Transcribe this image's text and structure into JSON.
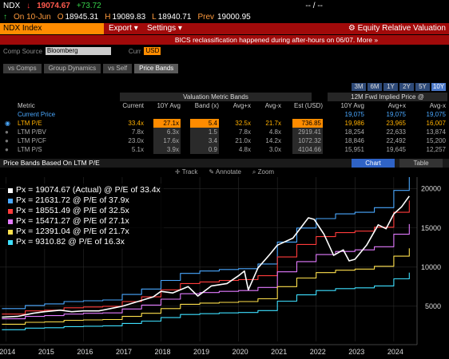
{
  "header": {
    "ticker": "NDX",
    "down_arrow": "↓",
    "last": "19074.67",
    "change": "+73.72",
    "up_arrow": "↑",
    "date_label": "On 10-Jun",
    "open_label": "O",
    "open": "18945.31",
    "high_label": "H",
    "high": "19089.83",
    "low_label": "L",
    "low": "18940.71",
    "prev_label": "Prev",
    "prev": "19000.95",
    "dash": "-- / --"
  },
  "command_bar": {
    "security": "NDX Index",
    "export_label": "Export",
    "settings_label": "Settings",
    "erv_label": "Equity Relative Valuation"
  },
  "notice": "BICS reclassification happened during after-hours on 06/07. More »",
  "comp_source": {
    "label": "Comp Source",
    "value": "Bloomberg",
    "curr_label": "Curr",
    "curr_value": "USD"
  },
  "tabs": [
    "vs Comps",
    "Group Dynamics",
    "vs Self",
    "Price Bands"
  ],
  "active_tab": 3,
  "periods": [
    "3M",
    "6M",
    "1Y",
    "2Y",
    "5Y",
    "10Y"
  ],
  "active_period": 5,
  "table": {
    "group1": "Valuation Metric Bands",
    "group2": "12M Fwd Implied Price @",
    "headers": [
      "Metric",
      "Current",
      "10Y Avg",
      "Band (x)",
      "Avg+x",
      "Avg-x",
      "Est (USD)",
      "10Y Avg",
      "Avg+x",
      "Avg-x"
    ],
    "current_price": {
      "label": "Current Price",
      "values": [
        "19,075",
        "19,075",
        "19,075"
      ]
    },
    "rows": [
      {
        "metric": "LTM P/E",
        "current": "33.4x",
        "avg": "27.1x",
        "band": "5.4",
        "avgplus": "32.5x",
        "avgminus": "21.7x",
        "est": "736.85",
        "p_avg": "19,986",
        "p_plus": "23,965",
        "p_minus": "16,007"
      },
      {
        "metric": "LTM P/BV",
        "current": "7.8x",
        "avg": "6.3x",
        "band": "1.5",
        "avgplus": "7.8x",
        "avgminus": "4.8x",
        "est": "2919.41",
        "p_avg": "18,254",
        "p_plus": "22,633",
        "p_minus": "13,874"
      },
      {
        "metric": "LTM P/CF",
        "current": "23.0x",
        "avg": "17.6x",
        "band": "3.4",
        "avgplus": "21.0x",
        "avgminus": "14.2x",
        "est": "1072.32",
        "p_avg": "18,846",
        "p_plus": "22,492",
        "p_minus": "15,200"
      },
      {
        "metric": "LTM P/S",
        "current": "5.1x",
        "avg": "3.9x",
        "band": "0.9",
        "avgplus": "4.8x",
        "avgminus": "3.0x",
        "est": "4104.66",
        "p_avg": "15,951",
        "p_plus": "19,645",
        "p_minus": "12,257"
      }
    ]
  },
  "chart_header": {
    "title": "Price Bands Based On LTM P/E",
    "chart_tab": "Chart",
    "table_tab": "Table"
  },
  "toolbar": {
    "track": "Track",
    "annotate": "Annotate",
    "zoom": "Zoom"
  },
  "colors": {
    "orange": "#ff8c00",
    "red_bar": "#a10a0a"
  },
  "chart_data": {
    "type": "line",
    "x_ticks": [
      "2014",
      "2015",
      "2016",
      "2017",
      "2018",
      "2019",
      "2020",
      "2021",
      "2022",
      "2023",
      "2024"
    ],
    "y_ticks": [
      5000,
      10000,
      15000,
      20000
    ],
    "ylim": [
      500,
      21500
    ],
    "xlim": [
      2013.85,
      2024.6
    ],
    "legend_placement": "top-left",
    "legend": [
      {
        "text": "Px = 19074.67 (Actual) @ P/E of 33.4x",
        "color": "#ffffff"
      },
      {
        "text": "Px = 21631.72 @ P/E of 37.9x",
        "color": "#4aa8ff"
      },
      {
        "text": "Px = 18551.49 @ P/E of 32.5x",
        "color": "#ff3b3b"
      },
      {
        "text": "Px = 15471.27 @ P/E of 27.1x",
        "color": "#e37bff"
      },
      {
        "text": "Px = 12391.04 @ P/E of 21.7x",
        "color": "#ffe14d"
      },
      {
        "text": "Px = 9310.82 @ P/E of 16.3x",
        "color": "#3ee0ff"
      }
    ],
    "series": [
      {
        "name": "Actual",
        "color": "#ffffff",
        "width": 1.6,
        "step": false,
        "x": [
          2013.9,
          2014.3,
          2014.7,
          2015.0,
          2015.4,
          2015.7,
          2016.0,
          2016.4,
          2016.8,
          2017.0,
          2017.4,
          2017.8,
          2018.0,
          2018.3,
          2018.7,
          2018.95,
          2019.3,
          2019.7,
          2020.0,
          2020.15,
          2020.25,
          2020.5,
          2020.8,
          2021.0,
          2021.4,
          2021.8,
          2021.95,
          2022.2,
          2022.45,
          2022.7,
          2022.85,
          2023.0,
          2023.3,
          2023.6,
          2023.8,
          2024.0,
          2024.2,
          2024.4
        ],
        "y": [
          3600,
          3700,
          4100,
          4300,
          4500,
          4300,
          4400,
          4400,
          4800,
          5000,
          5600,
          6200,
          6900,
          6700,
          7500,
          6300,
          7600,
          7900,
          8900,
          9500,
          7100,
          9900,
          11600,
          12800,
          13700,
          16300,
          16100,
          14200,
          11500,
          12200,
          10800,
          11000,
          12800,
          15400,
          14900,
          16800,
          17700,
          19075
        ]
      },
      {
        "name": "37.9x",
        "color": "#4aa8ff",
        "width": 1.1,
        "step": true,
        "x": [
          2013.9,
          2014.5,
          2015.0,
          2015.5,
          2016.0,
          2016.5,
          2017.0,
          2017.5,
          2018.0,
          2018.5,
          2019.0,
          2019.5,
          2020.0,
          2020.5,
          2021.0,
          2021.5,
          2022.0,
          2022.5,
          2023.0,
          2023.5,
          2024.0,
          2024.4
        ],
        "y": [
          4700,
          5100,
          5300,
          5600,
          5700,
          5800,
          6500,
          7200,
          8300,
          9200,
          9500,
          9700,
          9800,
          10400,
          13200,
          15000,
          16200,
          16800,
          17000,
          17600,
          19800,
          21500
        ]
      },
      {
        "name": "32.5x",
        "color": "#ff3b3b",
        "width": 1.1,
        "step": true,
        "x": [
          2013.9,
          2014.5,
          2015.0,
          2015.5,
          2016.0,
          2016.5,
          2017.0,
          2017.5,
          2018.0,
          2018.5,
          2019.0,
          2019.5,
          2020.0,
          2020.5,
          2021.0,
          2021.5,
          2022.0,
          2022.5,
          2023.0,
          2023.5,
          2024.0,
          2024.4
        ],
        "y": [
          4000,
          4400,
          4500,
          4800,
          4900,
          5000,
          5600,
          6200,
          7100,
          7900,
          8100,
          8300,
          8400,
          8900,
          11300,
          12900,
          13900,
          14400,
          14600,
          15100,
          17000,
          18500
        ]
      },
      {
        "name": "27.1x",
        "color": "#e37bff",
        "width": 1.1,
        "step": true,
        "x": [
          2013.9,
          2014.5,
          2015.0,
          2015.5,
          2016.0,
          2016.5,
          2017.0,
          2017.5,
          2018.0,
          2018.5,
          2019.0,
          2019.5,
          2020.0,
          2020.5,
          2021.0,
          2021.5,
          2022.0,
          2022.5,
          2023.0,
          2023.5,
          2024.0,
          2024.4
        ],
        "y": [
          3400,
          3700,
          3800,
          4000,
          4100,
          4150,
          4650,
          5150,
          5900,
          6600,
          6750,
          6900,
          7000,
          7400,
          9400,
          10700,
          11600,
          12000,
          12200,
          12600,
          14200,
          15500
        ]
      },
      {
        "name": "21.7x",
        "color": "#ffe14d",
        "width": 1.1,
        "step": true,
        "x": [
          2013.9,
          2014.5,
          2015.0,
          2015.5,
          2016.0,
          2016.5,
          2017.0,
          2017.5,
          2018.0,
          2018.5,
          2019.0,
          2019.5,
          2020.0,
          2020.5,
          2021.0,
          2021.5,
          2022.0,
          2022.5,
          2023.0,
          2023.5,
          2024.0,
          2024.4
        ],
        "y": [
          2700,
          2950,
          3000,
          3200,
          3250,
          3300,
          3700,
          4100,
          4700,
          5250,
          5400,
          5500,
          5600,
          5950,
          7500,
          8600,
          9300,
          9600,
          9750,
          10100,
          11400,
          12400
        ]
      },
      {
        "name": "16.3x",
        "color": "#3ee0ff",
        "width": 1.1,
        "step": true,
        "x": [
          2013.9,
          2014.5,
          2015.0,
          2015.5,
          2016.0,
          2016.5,
          2017.0,
          2017.5,
          2018.0,
          2018.5,
          2019.0,
          2019.5,
          2020.0,
          2020.5,
          2021.0,
          2021.5,
          2022.0,
          2022.5,
          2023.0,
          2023.5,
          2024.0,
          2024.4
        ],
        "y": [
          2000,
          2200,
          2250,
          2400,
          2450,
          2500,
          2800,
          3100,
          3550,
          3950,
          4050,
          4150,
          4200,
          4450,
          5650,
          6450,
          7000,
          7250,
          7350,
          7600,
          8500,
          9300
        ]
      }
    ]
  }
}
